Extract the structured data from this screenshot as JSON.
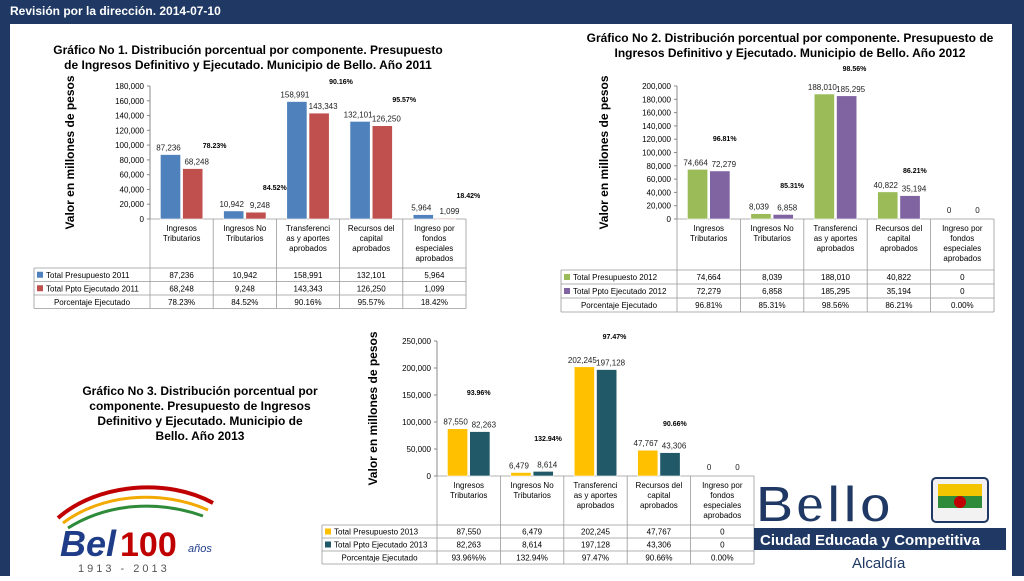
{
  "header": {
    "title": "Revisión por la dirección. 2014-07-10"
  },
  "colors": {
    "topbar": "#1f3864",
    "presupuesto_2011": "#4f81bd",
    "ejecutado_2011": "#c0504d",
    "presupuesto_2012": "#9bbb59",
    "ejecutado_2012": "#8064a2",
    "presupuesto_2013": "#ffc000",
    "ejecutado_2013": "#215968"
  },
  "chart_data": [
    {
      "type": "bar",
      "title": "Gráfico No 1. Distribución porcentual por componente. Presupuesto de Ingresos Definitivo y Ejecutado. Municipio de Bello. Año 2011",
      "ylabel": "Valor en millones de pesos",
      "ylim": [
        0,
        180000
      ],
      "yticks": [
        "0",
        "20,000",
        "40,000",
        "60,000",
        "80,000",
        "100,000",
        "120,000",
        "140,000",
        "160,000",
        "180,000"
      ],
      "categories": [
        "Ingresos Tributarios",
        "Ingresos No Tributarios",
        "Transferenci as y aportes aprobados",
        "Recursos del capital aprobados",
        "Ingreso por fondos especiales aprobados"
      ],
      "series": [
        {
          "name": "Total Presupuesto 2011",
          "values": [
            87236,
            10942,
            158991,
            132101,
            5964
          ],
          "labels": [
            "87,236",
            "10,942",
            "158,991",
            "132,101",
            "5,964"
          ]
        },
        {
          "name": "Total Ppto Ejecutado 2011",
          "values": [
            68248,
            9248,
            143343,
            126250,
            1099
          ],
          "labels": [
            "68,248",
            "9,248",
            "143,343",
            "126,250",
            "1,099"
          ]
        }
      ],
      "percent_row_label": "Porcentaje Ejecutado",
      "percentages": [
        "78.23%",
        "84.52%",
        "90.16%",
        "95.57%",
        "18.42%"
      ],
      "annotations": [
        "78.23%",
        "84.52%",
        "90.16%",
        "95.57%",
        "18.42%"
      ],
      "legend": "table-below"
    },
    {
      "type": "bar",
      "title": "Gráfico No 2. Distribución porcentual por componente. Presupuesto de Ingresos Definitivo y Ejecutado. Municipio de Bello. Año 2012",
      "ylabel": "Valor en millones de pesos",
      "ylim": [
        0,
        200000
      ],
      "yticks": [
        "0",
        "20,000",
        "40,000",
        "60,000",
        "80,000",
        "100,000",
        "120,000",
        "140,000",
        "160,000",
        "180,000",
        "200,000"
      ],
      "categories": [
        "Ingresos Tributarios",
        "Ingresos No Tributarios",
        "Transferenci as y aportes aprobados",
        "Recursos del capital aprobados",
        "Ingreso por fondos especiales aprobados"
      ],
      "series": [
        {
          "name": "Total Presupuesto 2012",
          "values": [
            74664,
            8039,
            188010,
            40822,
            0
          ],
          "labels": [
            "74,664",
            "8,039",
            "188,010",
            "40,822",
            "0"
          ]
        },
        {
          "name": "Total Ppto Ejecutado 2012",
          "values": [
            72279,
            6858,
            185295,
            35194,
            0
          ],
          "labels": [
            "72,279",
            "6,858",
            "185,295",
            "35,194",
            "0"
          ]
        }
      ],
      "percent_row_label": "Porcentaje Ejecutado",
      "percentages": [
        "96.81%",
        "85.31%",
        "98.56%",
        "86.21%",
        "0.00%"
      ],
      "annotations": [
        "96.81%",
        "85.31%",
        "98.56%",
        "86.21%",
        ""
      ],
      "legend": "table-below"
    },
    {
      "type": "bar",
      "title": "Gráfico No 3. Distribución porcentual por componente. Presupuesto de Ingresos Definitivo y Ejecutado. Municipio de Bello. Año 2013",
      "ylabel": "Valor en millones de pesos",
      "ylim": [
        0,
        250000
      ],
      "yticks": [
        "0",
        "50,000",
        "100,000",
        "150,000",
        "200,000",
        "250,000"
      ],
      "categories": [
        "Ingresos Tributarios",
        "Ingresos No Tributarios",
        "Transferenci as y aportes aprobados",
        "Recursos del capital aprobados",
        "Ingreso por fondos especiales aprobados"
      ],
      "series": [
        {
          "name": "Total Presupuesto 2013",
          "values": [
            87550,
            6479,
            202245,
            47767,
            0
          ],
          "labels": [
            "87,550",
            "6,479",
            "202,245",
            "47,767",
            "0"
          ]
        },
        {
          "name": "Total Ppto Ejecutado 2013",
          "values": [
            82263,
            8614,
            197128,
            43306,
            0
          ],
          "labels": [
            "82,263",
            "8,614",
            "197,128",
            "43,306",
            "0"
          ]
        }
      ],
      "percent_row_label": "Porcentaje Ejecutado",
      "percentages": [
        "93.96%%",
        "132.94%",
        "97.47%",
        "90.66%",
        "0.00%"
      ],
      "annotations": [
        "93.96%",
        "132.94%",
        "97.47%",
        "90.66%",
        ""
      ],
      "legend": "table-below"
    }
  ],
  "logos": {
    "left": {
      "main": "Bello",
      "years_label": "años",
      "years": "1913 - 2013"
    },
    "right": {
      "name": "Bello",
      "slogan": "Ciudad Educada y Competitiva",
      "office": "Alcaldía"
    }
  }
}
